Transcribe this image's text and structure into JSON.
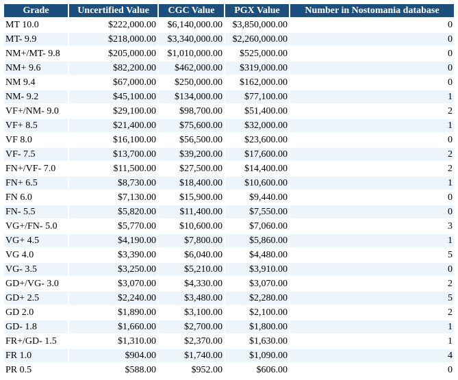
{
  "table": {
    "headers": [
      "Grade",
      "Uncertified Value",
      "CGC Value",
      "PGX Value",
      "Number in Nostomania database"
    ],
    "rows": [
      [
        "MT 10.0",
        "$222,000.00",
        "$6,140,000.00",
        "$3,850,000.00",
        0
      ],
      [
        "MT- 9.9",
        "$218,000.00",
        "$3,340,000.00",
        "$2,260,000.00",
        0
      ],
      [
        "NM+/MT- 9.8",
        "$205,000.00",
        "$1,010,000.00",
        "$525,000.00",
        0
      ],
      [
        "NM+ 9.6",
        "$82,200.00",
        "$462,000.00",
        "$319,000.00",
        0
      ],
      [
        "NM 9.4",
        "$67,000.00",
        "$250,000.00",
        "$162,000.00",
        0
      ],
      [
        "NM- 9.2",
        "$45,100.00",
        "$134,000.00",
        "$77,100.00",
        1
      ],
      [
        "VF+/NM- 9.0",
        "$29,100.00",
        "$98,700.00",
        "$51,400.00",
        2
      ],
      [
        "VF+ 8.5",
        "$21,400.00",
        "$75,600.00",
        "$32,000.00",
        1
      ],
      [
        "VF 8.0",
        "$16,100.00",
        "$56,500.00",
        "$23,600.00",
        0
      ],
      [
        "VF- 7.5",
        "$13,700.00",
        "$39,200.00",
        "$17,600.00",
        2
      ],
      [
        "FN+/VF- 7.0",
        "$11,500.00",
        "$27,500.00",
        "$14,400.00",
        2
      ],
      [
        "FN+ 6.5",
        "$8,730.00",
        "$18,400.00",
        "$10,600.00",
        1
      ],
      [
        "FN 6.0",
        "$7,130.00",
        "$15,900.00",
        "$9,440.00",
        0
      ],
      [
        "FN- 5.5",
        "$5,820.00",
        "$11,400.00",
        "$7,550.00",
        0
      ],
      [
        "VG+/FN- 5.0",
        "$5,770.00",
        "$10,600.00",
        "$7,060.00",
        3
      ],
      [
        "VG+ 4.5",
        "$4,190.00",
        "$7,800.00",
        "$5,860.00",
        1
      ],
      [
        "VG 4.0",
        "$3,390.00",
        "$6,040.00",
        "$4,480.00",
        5
      ],
      [
        "VG- 3.5",
        "$3,250.00",
        "$5,210.00",
        "$3,910.00",
        0
      ],
      [
        "GD+/VG- 3.0",
        "$3,070.00",
        "$4,330.00",
        "$3,070.00",
        2
      ],
      [
        "GD+ 2.5",
        "$2,240.00",
        "$3,480.00",
        "$2,280.00",
        5
      ],
      [
        "GD 2.0",
        "$1,890.00",
        "$3,100.00",
        "$2,100.00",
        2
      ],
      [
        "GD- 1.8",
        "$1,660.00",
        "$2,700.00",
        "$1,800.00",
        1
      ],
      [
        "FR+/GD- 1.5",
        "$1,310.00",
        "$2,370.00",
        "$1,630.00",
        1
      ],
      [
        "FR 1.0",
        "$904.00",
        "$1,740.00",
        "$1,090.00",
        4
      ],
      [
        "PR 0.5",
        "$588.00",
        "$952.00",
        "$606.00",
        0
      ]
    ]
  }
}
